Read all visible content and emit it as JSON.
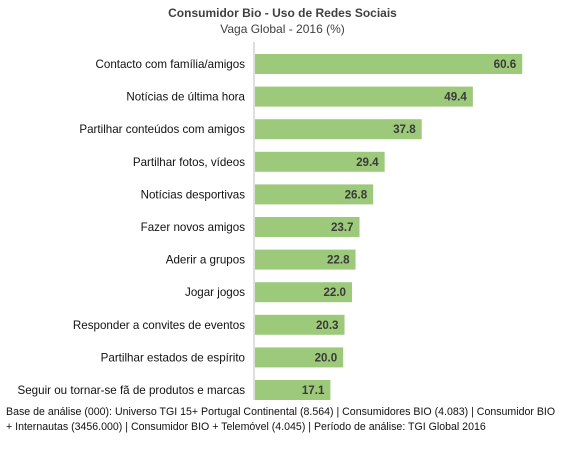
{
  "chart_data": {
    "type": "bar",
    "orientation": "horizontal",
    "title": "Consumidor Bio - Uso de Redes Sociais",
    "subtitle": "Vaga Global - 2016 (%)",
    "categories": [
      "Contacto com família/amigos",
      "Notícias de última hora",
      "Partilhar conteúdos com amigos",
      "Partilhar fotos, vídeos",
      "Notícias desportivas",
      "Fazer novos amigos",
      "Aderir a grupos",
      "Jogar jogos",
      "Responder a convites de eventos",
      "Partilhar estados de espírito",
      "Seguir ou tornar-se fã de produtos e marcas"
    ],
    "values": [
      60.6,
      49.4,
      37.8,
      29.4,
      26.8,
      23.7,
      22.8,
      22.0,
      20.3,
      20.0,
      17.1
    ],
    "value_labels": [
      "60.6",
      "49.4",
      "37.8",
      "29.4",
      "26.8",
      "23.7",
      "22.8",
      "22.0",
      "20.3",
      "20.0",
      "17.1"
    ],
    "xlim": [
      0,
      70
    ],
    "grid": false,
    "legend": "none",
    "bar_color": "#9dc97b"
  },
  "footnote": "Base de análise (000): Universo TGI 15+ Portugal Continental (8.564) | Consumidores BIO (4.083) | Consumidor BIO + Internautas (3456.000) | Consumidor BIO + Telemóvel (4.045) | Período de análise: TGI Global 2016"
}
